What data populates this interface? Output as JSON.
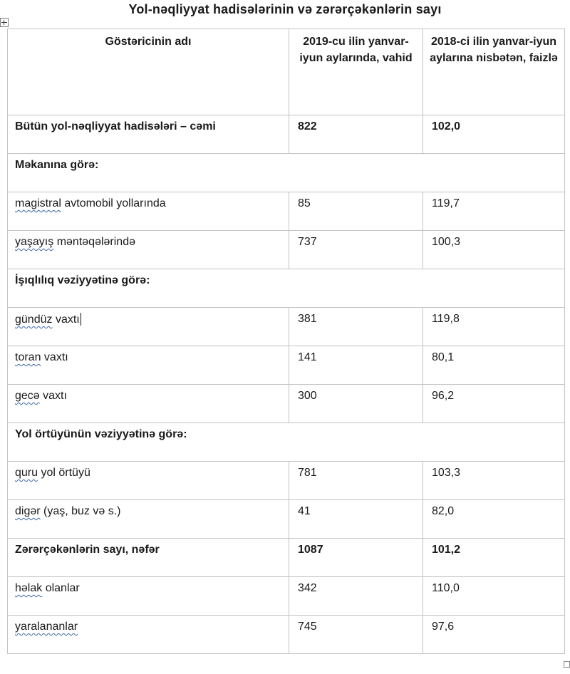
{
  "title": "Yol-nəqliyyat hadisələrinin və zərərçəkənlərin sayı",
  "colors": {
    "text": "#1a1a1a",
    "table_border": "#c3c3c3",
    "spellcheck_underline": "#3565d0",
    "background": "#ffffff"
  },
  "icons": {
    "table_move_handle": "four-direction-move-cross",
    "table_resize_handle": "small-square"
  },
  "table": {
    "columns": [
      "Göstəricinin adı",
      "2019-cu ilin yanvar-iyun aylarında, vahid",
      "2018-ci ilin yanvar-iyun aylarına nisbətən, faizlə"
    ],
    "rows": [
      {
        "type": "data",
        "bold": true,
        "parts": [
          {
            "t": "Bütün yol-nəqliyyat hadisələri – cəmi"
          }
        ],
        "value": "822",
        "percent": "102,0"
      },
      {
        "type": "section",
        "parts": [
          {
            "t": "Məkanına görə:"
          }
        ]
      },
      {
        "type": "data",
        "parts": [
          {
            "t": "magistral",
            "wavy": true
          },
          {
            "t": " avtomobil yollarında"
          }
        ],
        "value": "85",
        "percent": "119,7"
      },
      {
        "type": "data",
        "parts": [
          {
            "t": "yaşayış",
            "wavy": true
          },
          {
            "t": " məntəqələrində"
          }
        ],
        "value": "737",
        "percent": "100,3"
      },
      {
        "type": "section",
        "parts": [
          {
            "t": "İşıqlılıq vəziyyətinə görə:"
          }
        ]
      },
      {
        "type": "data",
        "parts": [
          {
            "t": "gündüz",
            "wavy": true
          },
          {
            "t": " vaxtı"
          }
        ],
        "caret": true,
        "value": "381",
        "percent": "119,8"
      },
      {
        "type": "data",
        "parts": [
          {
            "t": "toran",
            "wavy": true
          },
          {
            "t": " vaxtı"
          }
        ],
        "value": "141",
        "percent": "80,1"
      },
      {
        "type": "data",
        "parts": [
          {
            "t": "gecə",
            "wavy": true
          },
          {
            "t": " vaxtı"
          }
        ],
        "value": "300",
        "percent": "96,2"
      },
      {
        "type": "section",
        "parts": [
          {
            "t": "Yol örtüyünün vəziyyətinə görə:"
          }
        ]
      },
      {
        "type": "data",
        "parts": [
          {
            "t": "quru",
            "wavy": true
          },
          {
            "t": " yol örtüyü"
          }
        ],
        "value": "781",
        "percent": "103,3"
      },
      {
        "type": "data",
        "parts": [
          {
            "t": "digər",
            "wavy": true
          },
          {
            "t": " (yaş, buz və s.)"
          }
        ],
        "value": "41",
        "percent": "82,0"
      },
      {
        "type": "data",
        "bold": true,
        "parts": [
          {
            "t": "Zərərçəkənlərin sayı, nəfər"
          }
        ],
        "value": "1087",
        "percent": "101,2"
      },
      {
        "type": "data",
        "parts": [
          {
            "t": "həlak",
            "wavy": true
          },
          {
            "t": " olanlar"
          }
        ],
        "value": "342",
        "percent": "110,0"
      },
      {
        "type": "data",
        "parts": [
          {
            "t": "yaralananlar",
            "wavy": true
          }
        ],
        "value": "745",
        "percent": "97,6"
      }
    ]
  }
}
